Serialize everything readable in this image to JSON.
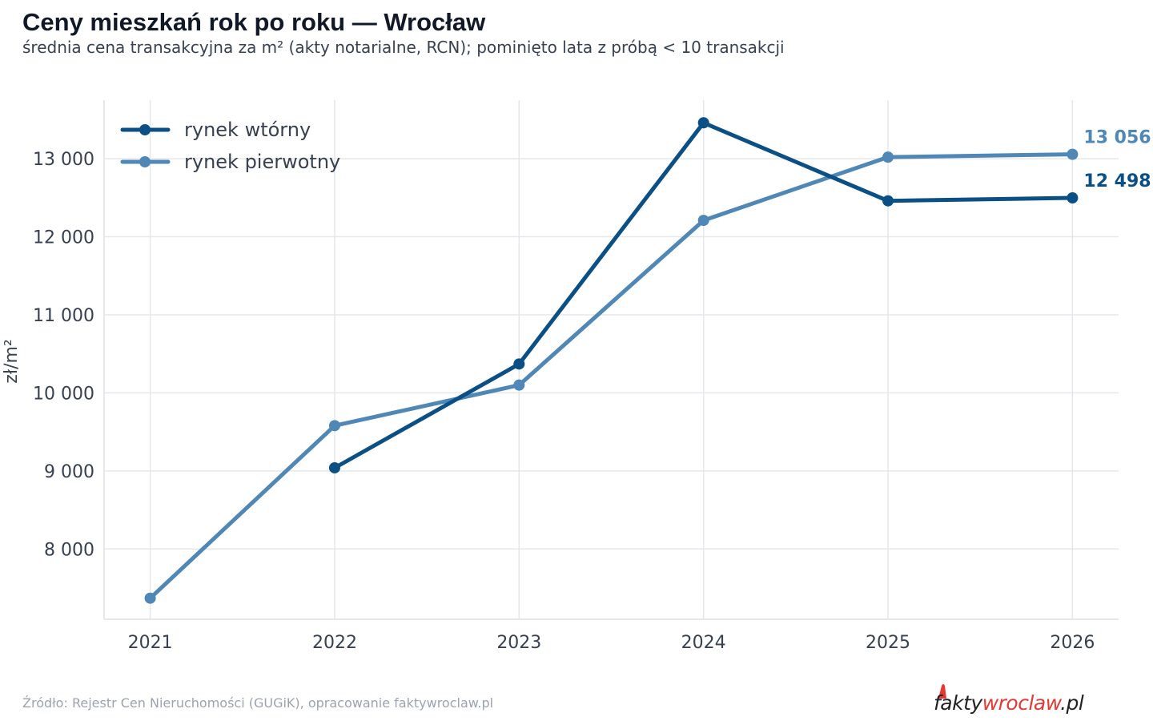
{
  "header": {
    "title": "Ceny mieszkań rok po roku — Wrocław",
    "subtitle": "średnia cena transakcyjna za m² (akty notarialne, RCN); pominięto lata z próbą < 10 transakcji"
  },
  "footer": {
    "source": "Źródło: Rejestr Cen Nieruchomości (GUGiK), opracowanie faktywroclaw.pl",
    "logo_text": "faktywroclaw.pl"
  },
  "colors": {
    "secondary": "#0a4f85",
    "primary": "#4f87b6",
    "grid": "#e5e7eb",
    "axis_text": "#374151",
    "logo_dark": "#222222",
    "logo_red": "#e53935"
  },
  "chart_data": {
    "type": "line",
    "title": "Ceny mieszkań rok po roku — Wrocław",
    "subtitle": "średnia cena transakcyjna za m² (akty notarialne, RCN); pominięto lata z próbą < 10 transakcji",
    "xlabel": "",
    "ylabel": "zł/m²",
    "x": [
      "2021",
      "2022",
      "2023",
      "2024",
      "2025",
      "2026"
    ],
    "xlim": [
      2020.75,
      2026.25
    ],
    "ylim": [
      7100,
      13750
    ],
    "y_ticks": [
      8000,
      9000,
      10000,
      11000,
      12000,
      13000
    ],
    "y_tick_labels": [
      "8 000",
      "9 000",
      "10 000",
      "11 000",
      "12 000",
      "13 000"
    ],
    "grid": true,
    "legend_position": "top-left",
    "series": [
      {
        "name": "rynek wtórny",
        "color": "#0a4f85",
        "values": [
          null,
          9040,
          10370,
          13460,
          12460,
          12498
        ],
        "end_label": "12 498"
      },
      {
        "name": "rynek pierwotny",
        "color": "#4f87b6",
        "values": [
          7370,
          9580,
          10100,
          12210,
          13020,
          13056
        ],
        "end_label": "13 056"
      }
    ]
  }
}
